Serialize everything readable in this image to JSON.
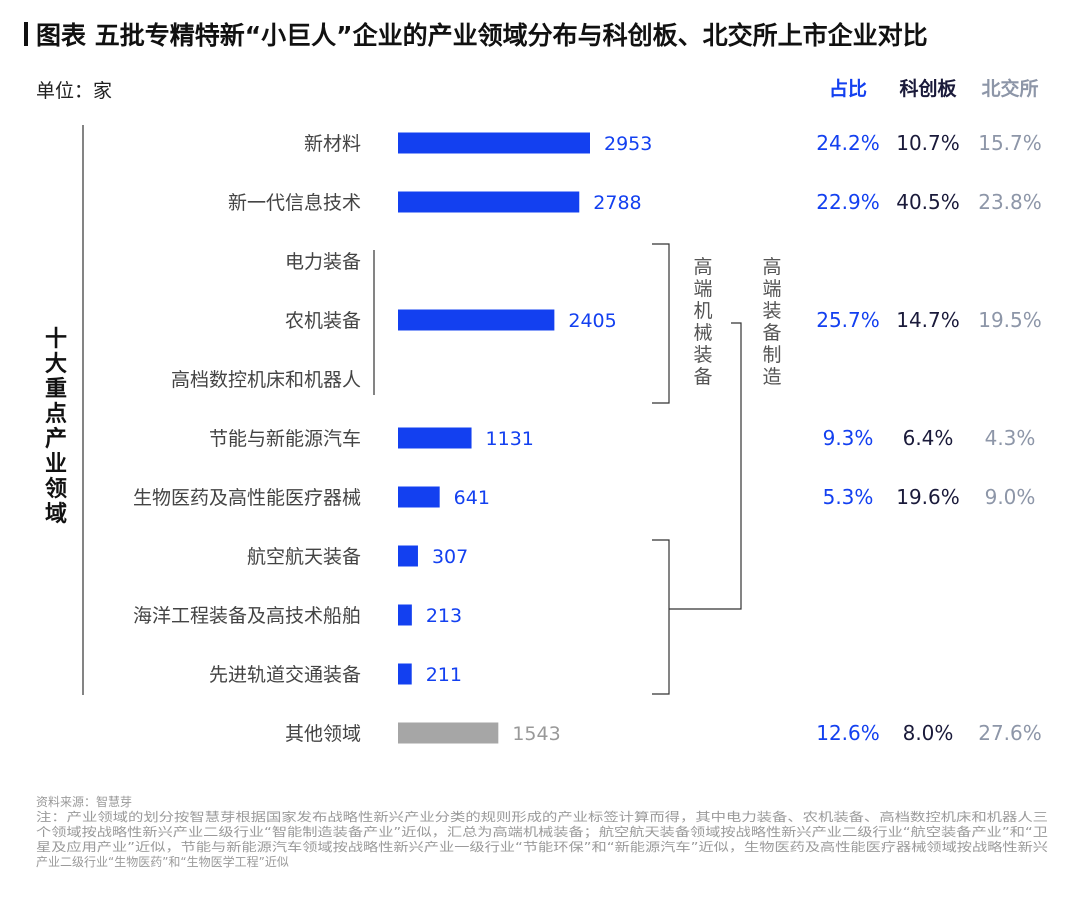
{
  "title": "图表 五批专精特新“小巨人”企业的产业领域分布与科创板、北交所上市企业对比",
  "unit_label": "单位：家",
  "column_headers": [
    "占比",
    "科创板",
    "北交所"
  ],
  "y_axis_label": "十大重点产业领域",
  "group_labels": {
    "high_end_machinery": "高端机械装备",
    "high_end_equipment": "高端装备制造"
  },
  "colors": {
    "bar": "#1340F0",
    "other_bar": "#A6A6A6",
    "share": "#1340F0",
    "star_market": "#1a1a3a",
    "bse": "#8d96a8",
    "other_value": "#999999"
  },
  "chart_data": {
    "type": "bar",
    "orientation": "horizontal",
    "categories": [
      "新材料",
      "新一代信息技术",
      "电力装备",
      "农机装备",
      "高档数控机床和机器人",
      "节能与新能源汽车",
      "生物医药及高性能医疗器械",
      "航空航天装备",
      "海洋工程装备及高技术船舶",
      "先进轨道交通装备",
      "其他领域"
    ],
    "values": [
      2953,
      2788,
      null,
      2405,
      null,
      1131,
      641,
      307,
      213,
      211,
      1543
    ],
    "value_labels": [
      "2953",
      "2788",
      "",
      "2405",
      "",
      "1131",
      "641",
      "307",
      "213",
      "211",
      "1543"
    ],
    "share": [
      "24.2%",
      "22.9%",
      "",
      "25.7%",
      "",
      "9.3%",
      "5.3%",
      "",
      "",
      "",
      "12.6%"
    ],
    "star_market": [
      "10.7%",
      "40.5%",
      "",
      "14.7%",
      "",
      "6.4%",
      "19.6%",
      "",
      "",
      "",
      "8.0%"
    ],
    "bse": [
      "15.7%",
      "23.8%",
      "",
      "19.5%",
      "",
      "4.3%",
      "9.0%",
      "",
      "",
      "",
      "27.6%"
    ]
  },
  "source_note": [
    "资料来源：智慧芽",
    "注：产业领域的划分按智慧芽根据国家发布战略性新兴产业分类的规则形成的产业标签计算而得，其中电力装备、农机装备、高档数控机床和机器人三",
    "个领域按战略性新兴产业二级行业“智能制造装备产业”近似，汇总为高端机械装备；航空航天装备领域按战略性新兴产业二级行业“航空装备产业”和“卫",
    "星及应用产业”近似，节能与新能源汽车领域按战略性新兴产业一级行业“节能环保”和“新能源汽车”近似，生物医药及高性能医疗器械领域按战略性新兴",
    "产业二级行业“生物医药”和“生物医学工程”近似"
  ]
}
